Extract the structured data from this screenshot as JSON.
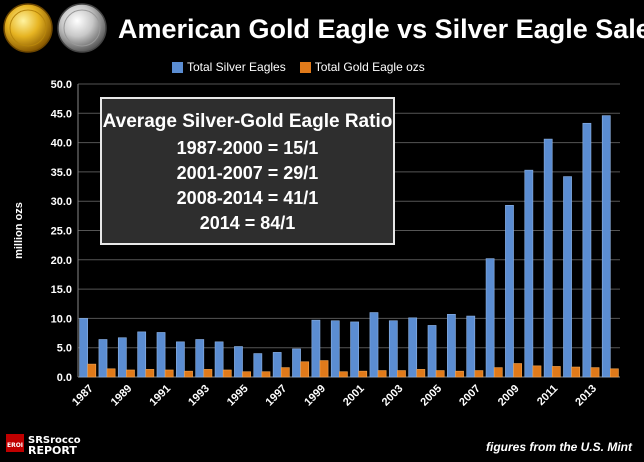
{
  "title": "American Gold Eagle vs Silver Eagle Sales",
  "source_note": "figures from the U.S. Mint",
  "logo": {
    "name": "SRSrocco REPORT",
    "badge": "EROI"
  },
  "colors": {
    "silver": "#5b8dd2",
    "gold": "#e07a1a",
    "background": "#000000",
    "grid": "#555555"
  },
  "ratio_box": {
    "title": "Average Silver-Gold Eagle Ratio",
    "lines": [
      "1987-2000 = 15/1",
      "2001-2007 = 29/1",
      "2008-2014 = 41/1",
      "2014 = 84/1"
    ]
  },
  "chart_data": {
    "type": "bar",
    "categories": [
      "1987",
      "1988",
      "1989",
      "1990",
      "1991",
      "1992",
      "1993",
      "1994",
      "1995",
      "1996",
      "1997",
      "1998",
      "1999",
      "2000",
      "2001",
      "2002",
      "2003",
      "2004",
      "2005",
      "2006",
      "2007",
      "2008",
      "2009",
      "2010",
      "2011",
      "2012",
      "2013",
      "2014"
    ],
    "tick_labels": [
      "1987",
      "1989",
      "1991",
      "1993",
      "1995",
      "1997",
      "1999",
      "2001",
      "2003",
      "2005",
      "2007",
      "2009",
      "2011",
      "2013"
    ],
    "y_ticks": [
      "0.0",
      "5.0",
      "10.0",
      "15.0",
      "20.0",
      "25.0",
      "30.0",
      "35.0",
      "40.0",
      "45.0",
      "50.0"
    ],
    "series": [
      {
        "name": "Total  Silver Eagles",
        "color": "#5b8dd2",
        "values": [
          10.0,
          6.4,
          6.7,
          7.7,
          7.6,
          6.0,
          6.4,
          6.0,
          5.2,
          4.0,
          4.2,
          4.8,
          9.7,
          9.6,
          9.4,
          11.0,
          9.6,
          10.1,
          8.8,
          10.7,
          10.4,
          20.2,
          29.3,
          35.3,
          40.6,
          34.2,
          43.3,
          44.6
        ]
      },
      {
        "name": "Total Gold Eagle ozs",
        "color": "#e07a1a",
        "values": [
          2.2,
          1.4,
          1.2,
          1.3,
          1.2,
          1.0,
          1.3,
          1.2,
          0.9,
          0.9,
          1.6,
          2.6,
          2.8,
          0.9,
          1.0,
          1.1,
          1.1,
          1.3,
          1.1,
          1.0,
          1.1,
          1.6,
          2.3,
          1.9,
          1.8,
          1.7,
          1.6,
          1.4
        ]
      }
    ],
    "ylabel": "million ozs",
    "ylim": [
      0,
      50
    ],
    "grid": true,
    "legend": "top-center"
  }
}
